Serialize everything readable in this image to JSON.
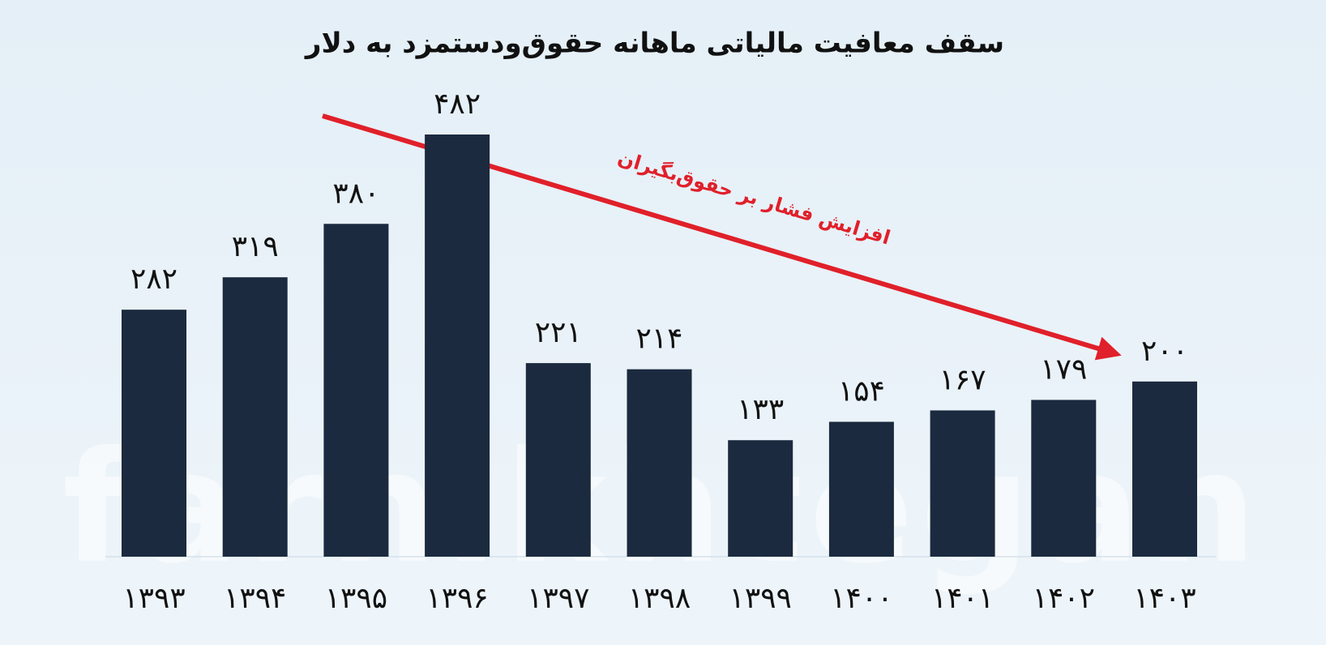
{
  "chart_data": {
    "type": "bar",
    "title": "سقف معافیت مالیاتی ماهانه حقوق‌ودستمزد به دلار",
    "annotation": "افزایش فشار بر حقوق‌بگیران",
    "watermark": "farhikhtegan",
    "categories": [
      "۱۳۹۳",
      "۱۳۹۴",
      "۱۳۹۵",
      "۱۳۹۶",
      "۱۳۹۷",
      "۱۳۹۸",
      "۱۳۹۹",
      "۱۴۰۰",
      "۱۴۰۱",
      "۱۴۰۲",
      "۱۴۰۳"
    ],
    "values": [
      282,
      319,
      380,
      482,
      221,
      214,
      133,
      154,
      167,
      179,
      200
    ],
    "value_labels": [
      "۲۸۲",
      "۳۱۹",
      "۳۸۰",
      "۴۸۲",
      "۲۲۱",
      "۲۱۴",
      "۱۳۳",
      "۱۵۴",
      "۱۶۷",
      "۱۷۹",
      "۲۰۰"
    ],
    "color": "#1b2a3e"
  }
}
